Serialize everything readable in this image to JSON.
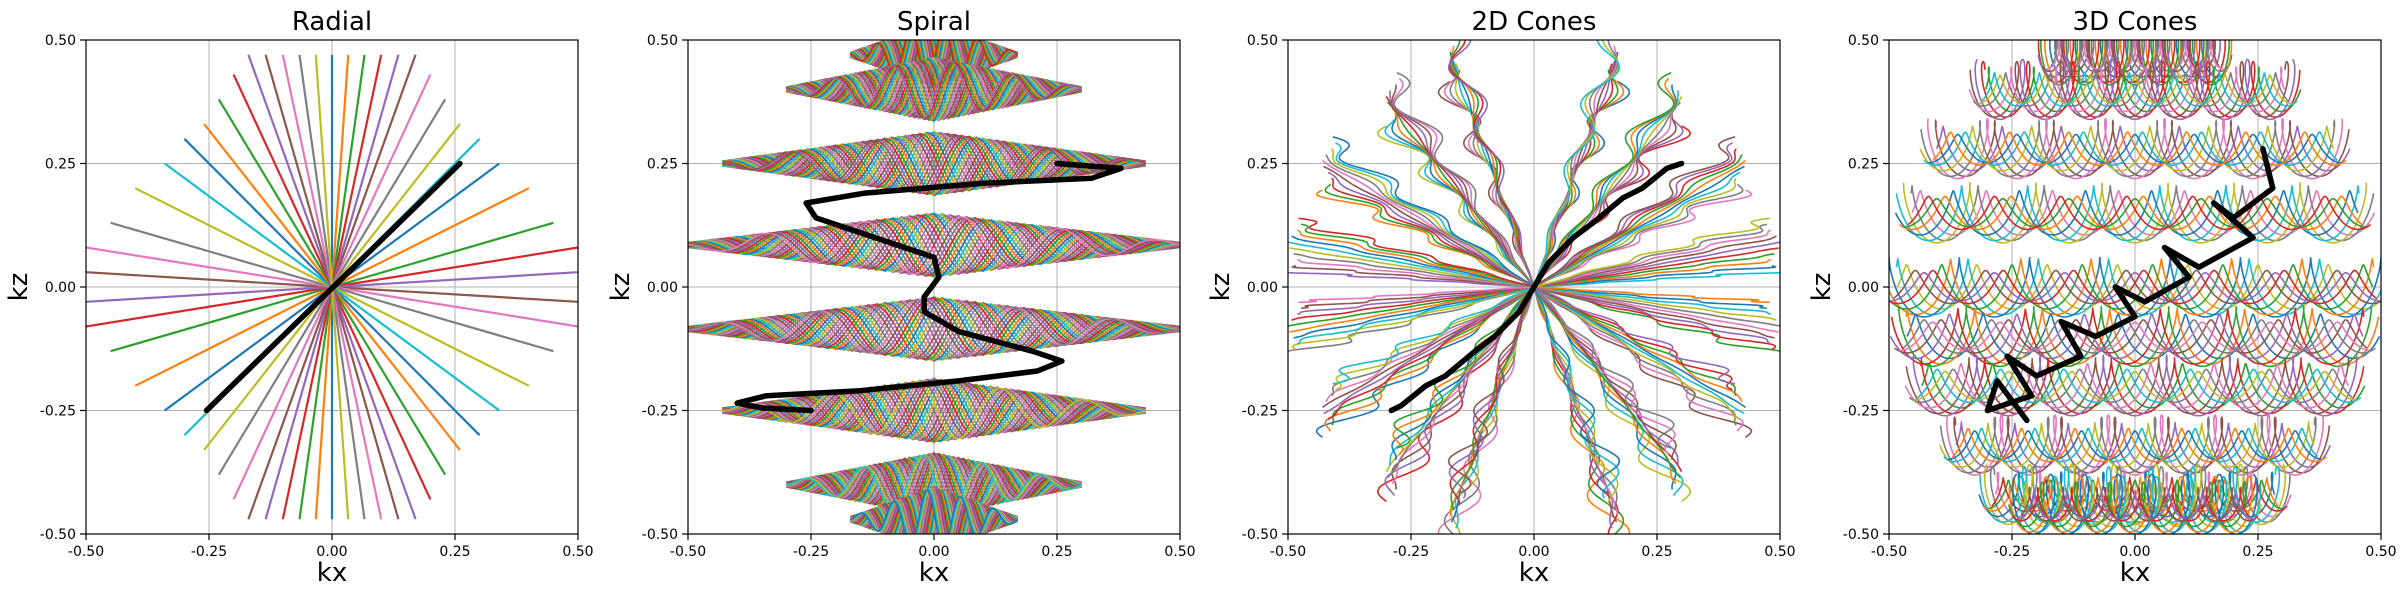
{
  "figure": {
    "background": "#ffffff",
    "grid": true,
    "legend": "none"
  },
  "chart_data": [
    {
      "type": "line",
      "title": "Radial",
      "xlabel": "kx",
      "ylabel": "kz",
      "xlim": [
        -0.5,
        0.5
      ],
      "ylim": [
        -0.5,
        0.5
      ],
      "xticks": [
        "-0.50",
        "-0.25",
        "0.00",
        "0.25",
        "0.50"
      ],
      "yticks": [
        "-0.50",
        "-0.25",
        "0.00",
        "0.25",
        "0.50"
      ],
      "series": [
        {
          "x": [
            -0.0,
            0.0
          ],
          "y": [
            -0.47,
            0.47
          ]
        },
        {
          "x": [
            -0.033,
            0.033
          ],
          "y": [
            -0.47,
            0.47
          ]
        },
        {
          "x": [
            -0.066,
            0.066
          ],
          "y": [
            -0.47,
            0.47
          ]
        },
        {
          "x": [
            -0.1,
            0.1
          ],
          "y": [
            -0.47,
            0.47
          ]
        },
        {
          "x": [
            -0.135,
            0.135
          ],
          "y": [
            -0.47,
            0.47
          ]
        },
        {
          "x": [
            -0.17,
            0.17
          ],
          "y": [
            -0.47,
            0.47
          ]
        },
        {
          "x": [
            -0.2,
            0.2
          ],
          "y": [
            -0.43,
            0.43
          ]
        },
        {
          "x": [
            -0.23,
            0.23
          ],
          "y": [
            -0.38,
            0.38
          ]
        },
        {
          "x": [
            -0.26,
            0.26
          ],
          "y": [
            -0.33,
            0.33
          ]
        },
        {
          "x": [
            -0.3,
            0.3
          ],
          "y": [
            -0.3,
            0.3
          ]
        },
        {
          "x": [
            -0.34,
            0.34
          ],
          "y": [
            -0.25,
            0.25
          ]
        },
        {
          "x": [
            -0.4,
            0.4
          ],
          "y": [
            -0.2,
            0.2
          ]
        },
        {
          "x": [
            -0.45,
            0.45
          ],
          "y": [
            -0.13,
            0.13
          ]
        },
        {
          "x": [
            -0.5,
            0.5
          ],
          "y": [
            -0.08,
            0.08
          ]
        },
        {
          "x": [
            -0.5,
            0.5
          ],
          "y": [
            -0.03,
            0.03
          ]
        },
        {
          "x": [
            -0.5,
            0.5
          ],
          "y": [
            0.03,
            -0.03
          ]
        },
        {
          "x": [
            -0.5,
            0.5
          ],
          "y": [
            0.08,
            -0.08
          ]
        },
        {
          "x": [
            -0.45,
            0.45
          ],
          "y": [
            0.13,
            -0.13
          ]
        },
        {
          "x": [
            -0.4,
            0.4
          ],
          "y": [
            0.2,
            -0.2
          ]
        },
        {
          "x": [
            -0.34,
            0.34
          ],
          "y": [
            0.25,
            -0.25
          ]
        },
        {
          "x": [
            -0.3,
            0.3
          ],
          "y": [
            0.3,
            -0.3
          ]
        },
        {
          "x": [
            -0.26,
            0.26
          ],
          "y": [
            0.33,
            -0.33
          ]
        },
        {
          "x": [
            -0.23,
            0.23
          ],
          "y": [
            0.38,
            -0.38
          ]
        },
        {
          "x": [
            -0.2,
            0.2
          ],
          "y": [
            0.43,
            -0.43
          ]
        },
        {
          "x": [
            -0.17,
            0.17
          ],
          "y": [
            0.47,
            -0.47
          ]
        },
        {
          "x": [
            -0.135,
            0.135
          ],
          "y": [
            0.47,
            -0.47
          ]
        },
        {
          "x": [
            -0.1,
            0.1
          ],
          "y": [
            0.47,
            -0.47
          ]
        },
        {
          "x": [
            -0.066,
            0.066
          ],
          "y": [
            0.47,
            -0.47
          ]
        },
        {
          "x": [
            -0.033,
            0.033
          ],
          "y": [
            0.47,
            -0.47
          ]
        }
      ],
      "highlight": {
        "color": "#000000",
        "x": [
          -0.255,
          0.26
        ],
        "y": [
          -0.25,
          0.25
        ]
      }
    },
    {
      "type": "line",
      "title": "Spiral",
      "xlabel": "kx",
      "ylabel": "kz",
      "xlim": [
        -0.5,
        0.5
      ],
      "ylim": [
        -0.5,
        0.5
      ],
      "xticks": [
        "-0.50",
        "-0.25",
        "0.00",
        "0.25",
        "0.50"
      ],
      "yticks": [
        "-0.50",
        "-0.25",
        "0.00",
        "0.25",
        "0.50"
      ],
      "bands": [
        {
          "z": 0.47,
          "w": 0.17
        },
        {
          "z": 0.4,
          "w": 0.3
        },
        {
          "z": 0.25,
          "w": 0.43
        },
        {
          "z": 0.085,
          "w": 0.5
        },
        {
          "z": -0.085,
          "w": 0.5
        },
        {
          "z": -0.25,
          "w": 0.43
        },
        {
          "z": -0.4,
          "w": 0.3
        },
        {
          "z": -0.47,
          "w": 0.17
        }
      ],
      "highlight": {
        "color": "#000000",
        "x": [
          0.25,
          0.38,
          0.32,
          0.1,
          -0.14,
          -0.26,
          -0.24,
          -0.12,
          0.0,
          0.01,
          -0.02,
          -0.02,
          0.05,
          0.2,
          0.26,
          0.21,
          0.05,
          -0.15,
          -0.34,
          -0.4,
          -0.35,
          -0.25
        ],
        "y": [
          0.25,
          0.24,
          0.22,
          0.21,
          0.19,
          0.17,
          0.14,
          0.1,
          0.06,
          0.02,
          -0.02,
          -0.05,
          -0.09,
          -0.13,
          -0.15,
          -0.17,
          -0.19,
          -0.21,
          -0.22,
          -0.235,
          -0.245,
          -0.25
        ]
      }
    },
    {
      "type": "line",
      "title": "2D Cones",
      "xlabel": "kx",
      "ylabel": "kz",
      "xlim": [
        -0.5,
        0.5
      ],
      "ylim": [
        -0.5,
        0.5
      ],
      "xticks": [
        "-0.50",
        "-0.25",
        "0.00",
        "0.25",
        "0.50"
      ],
      "yticks": [
        "-0.50",
        "-0.25",
        "0.00",
        "0.25",
        "0.50"
      ],
      "cones": [
        {
          "ex": 0.17,
          "ez": 0.47
        },
        {
          "ex": 0.3,
          "ez": 0.38
        },
        {
          "ex": 0.43,
          "ez": 0.25
        },
        {
          "ex": 0.5,
          "ez": 0.085
        },
        {
          "ex": 0.5,
          "ez": -0.085
        },
        {
          "ex": 0.43,
          "ez": -0.25
        },
        {
          "ex": 0.3,
          "ez": -0.38
        },
        {
          "ex": 0.17,
          "ez": -0.47
        }
      ],
      "highlight": {
        "color": "#000000",
        "x": [
          0.3,
          0.27,
          0.22,
          0.18,
          0.12,
          0.08,
          0.03,
          0.0,
          -0.03,
          -0.08,
          -0.12,
          -0.18,
          -0.22,
          -0.27,
          -0.29
        ],
        "y": [
          0.25,
          0.24,
          0.2,
          0.18,
          0.13,
          0.1,
          0.05,
          0.0,
          -0.05,
          -0.1,
          -0.13,
          -0.18,
          -0.2,
          -0.24,
          -0.25
        ]
      }
    },
    {
      "type": "line",
      "title": "3D Cones",
      "xlabel": "kx",
      "ylabel": "kz",
      "xlim": [
        -0.5,
        0.5
      ],
      "ylim": [
        -0.5,
        0.5
      ],
      "xticks": [
        "-0.50",
        "-0.25",
        "0.00",
        "0.25",
        "0.50"
      ],
      "yticks": [
        "-0.50",
        "-0.25",
        "0.00",
        "0.25",
        "0.50"
      ],
      "rows": [
        {
          "z": 0.47,
          "w": 0.18
        },
        {
          "z": 0.4,
          "w": 0.32
        },
        {
          "z": 0.28,
          "w": 0.42
        },
        {
          "z": 0.15,
          "w": 0.47
        },
        {
          "z": 0.0,
          "w": 0.5
        },
        {
          "z": -0.1,
          "w": 0.48
        },
        {
          "z": -0.2,
          "w": 0.45
        },
        {
          "z": -0.32,
          "w": 0.38
        },
        {
          "z": -0.42,
          "w": 0.3
        },
        {
          "z": -0.44,
          "w": 0.24
        }
      ],
      "highlight": {
        "color": "#000000",
        "x": [
          0.26,
          0.28,
          0.2,
          0.16,
          0.24,
          0.13,
          0.06,
          0.11,
          0.02,
          -0.04,
          0.0,
          -0.08,
          -0.15,
          -0.11,
          -0.2,
          -0.26,
          -0.21,
          -0.3,
          -0.28,
          -0.22
        ],
        "y": [
          0.28,
          0.2,
          0.14,
          0.17,
          0.1,
          0.04,
          0.08,
          0.02,
          -0.03,
          0.0,
          -0.06,
          -0.1,
          -0.07,
          -0.14,
          -0.18,
          -0.14,
          -0.22,
          -0.25,
          -0.19,
          -0.27
        ]
      }
    }
  ]
}
